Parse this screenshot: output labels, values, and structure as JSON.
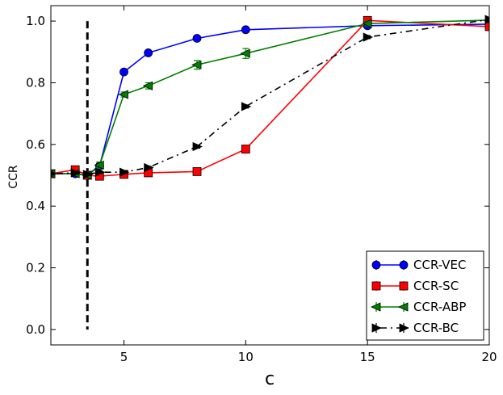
{
  "chart_data": {
    "type": "line",
    "title": "",
    "xlabel": "c",
    "ylabel": "CCR",
    "xlim": [
      2,
      20
    ],
    "ylim": [
      -0.05,
      1.05
    ],
    "xticks": [
      5,
      10,
      15,
      20
    ],
    "yticks": [
      0.0,
      0.2,
      0.4,
      0.6,
      0.8,
      1.0
    ],
    "xtick_labels": [
      "5",
      "10",
      "15",
      "20"
    ],
    "ytick_labels": [
      "0.0",
      "0.2",
      "0.4",
      "0.6",
      "0.8",
      "1.0"
    ],
    "vline": {
      "x": 3.5,
      "y_range": [
        0.0,
        1.0
      ],
      "style": "dashed",
      "color": "#000000"
    },
    "legend_position": "bottom-right",
    "series": [
      {
        "name": "CCR-VEC",
        "color": "#0000ff",
        "marker": "circle",
        "line_style": "solid",
        "x": [
          2,
          3,
          3.5,
          4,
          5,
          6,
          8,
          10,
          15,
          20
        ],
        "y": [
          0.505,
          0.505,
          0.5,
          0.53,
          0.835,
          0.897,
          0.944,
          0.972,
          0.985,
          0.99
        ],
        "err": [
          0.005,
          0.005,
          0.006,
          0.006,
          0.005,
          0.005,
          0.005,
          0.004,
          0.004,
          0.004
        ]
      },
      {
        "name": "CCR-SC",
        "color": "#ff0000",
        "marker": "square",
        "line_style": "solid",
        "x": [
          2,
          3,
          3.5,
          4,
          5,
          6,
          8,
          10,
          15,
          20
        ],
        "y": [
          0.505,
          0.518,
          0.5,
          0.497,
          0.503,
          0.508,
          0.512,
          0.585,
          1.002,
          0.982
        ],
        "err": [
          0.006,
          0.006,
          0.006,
          0.006,
          0.006,
          0.006,
          0.006,
          0.012,
          0.006,
          0.006
        ]
      },
      {
        "name": "CCR-ABP",
        "color": "#008000",
        "marker": "triangle-left",
        "line_style": "solid",
        "x": [
          2,
          3,
          3.5,
          4,
          5,
          6,
          8,
          10,
          15,
          20
        ],
        "y": [
          0.505,
          0.505,
          0.5,
          0.533,
          0.762,
          0.79,
          0.858,
          0.895,
          0.992,
          1.003
        ],
        "err": [
          0.005,
          0.005,
          0.006,
          0.01,
          0.008,
          0.01,
          0.014,
          0.016,
          0.008,
          0.006
        ]
      },
      {
        "name": "CCR-BC",
        "color": "#000000",
        "marker": "triangle-right",
        "line_style": "dashdot",
        "x": [
          2,
          3,
          3.5,
          4,
          5,
          6,
          8,
          10,
          15,
          20
        ],
        "y": [
          0.505,
          0.508,
          0.503,
          0.51,
          0.51,
          0.525,
          0.593,
          0.723,
          0.948,
          1.005
        ],
        "err": [
          0.004,
          0.004,
          0.004,
          0.004,
          0.004,
          0.004,
          0.005,
          0.005,
          0.005,
          0.004
        ]
      }
    ]
  }
}
